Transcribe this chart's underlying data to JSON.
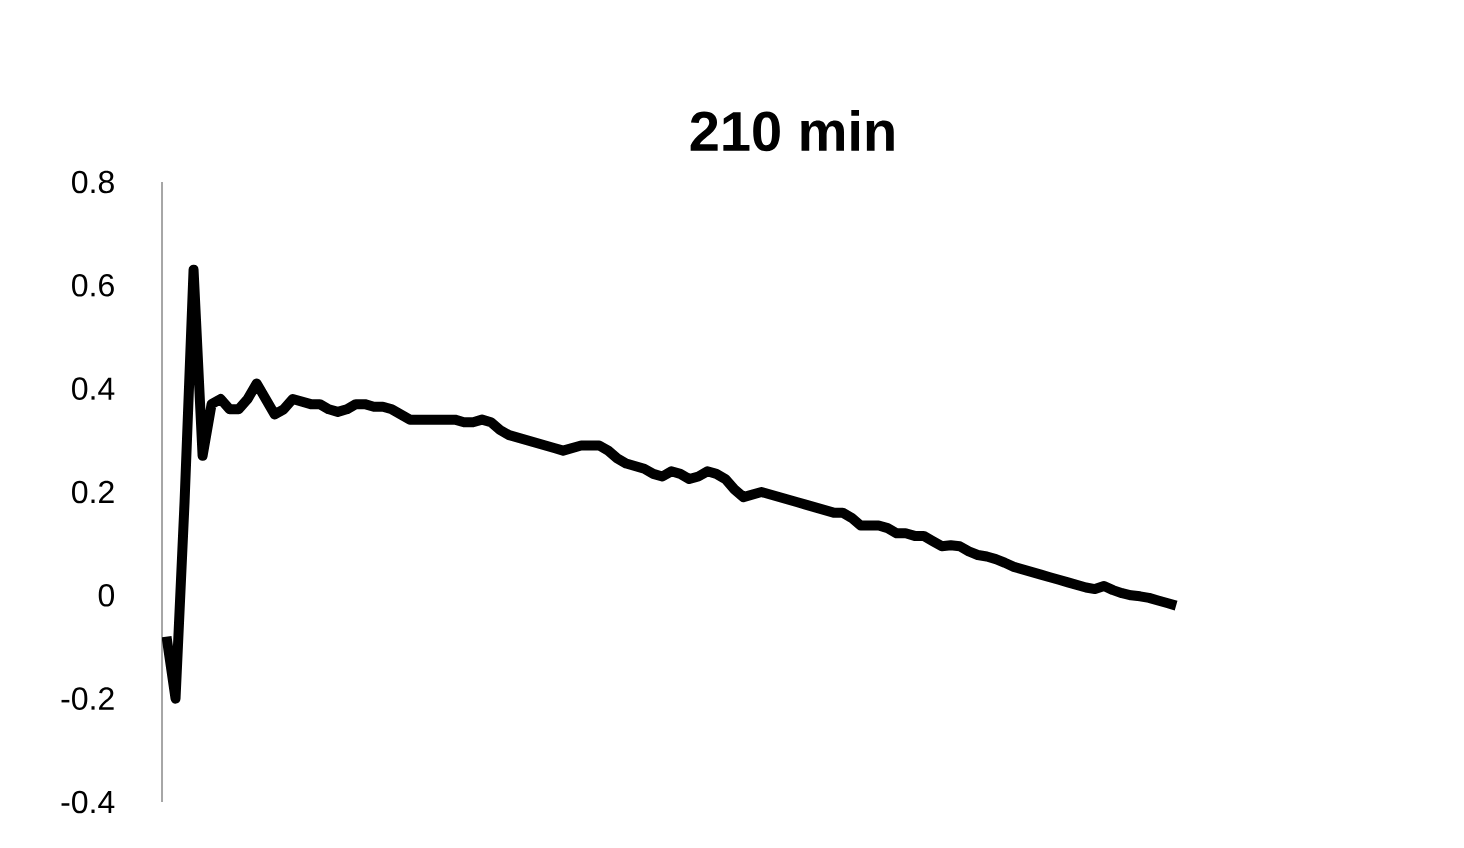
{
  "chart_data": {
    "type": "line",
    "title": "**210 min**",
    "categories": [
      null,
      null,
      null,
      null,
      null,
      null,
      null,
      null,
      null,
      null,
      null,
      null,
      null,
      null,
      null,
      null,
      null,
      null,
      null,
      null,
      null,
      null,
      null,
      null,
      null,
      null,
      null,
      null,
      null,
      null,
      null,
      null,
      null,
      null,
      null,
      null,
      null,
      null,
      null,
      null,
      null,
      null,
      null,
      null,
      null,
      null,
      null,
      null,
      null,
      null,
      null,
      null,
      null,
      null,
      null,
      null,
      null,
      null,
      null,
      null,
      null,
      null,
      null,
      null,
      null,
      null,
      null,
      null,
      null,
      null,
      null,
      null,
      null,
      null,
      null,
      null,
      null,
      null,
      null,
      null,
      null,
      null,
      null,
      null,
      null,
      null,
      null,
      null,
      null,
      null,
      null,
      null,
      null,
      null,
      null,
      null,
      null,
      null,
      null,
      null,
      null,
      null,
      null,
      null,
      null,
      null,
      null,
      null,
      null,
      null,
      null,
      null,
      null,
      null,
      null,
      null,
      null,
      null,
      null,
      null,
      null,
      null,
      null,
      null,
      null,
      null,
      null,
      null,
      null,
      null,
      null,
      null,
      null,
      null,
      null,
      null,
      null,
      null,
      null,
      null
    ],
    "values": [
      -0.08,
      -0.2,
      0.18,
      0.63,
      0.27,
      0.37,
      0.38,
      0.36,
      0.36,
      0.38,
      0.41,
      0.38,
      0.35,
      0.36,
      0.38,
      0.375,
      0.37,
      0.37,
      0.36,
      0.355,
      0.36,
      0.37,
      0.37,
      0.365,
      0.365,
      0.36,
      0.35,
      0.34,
      0.34,
      0.34,
      0.34,
      0.34,
      0.34,
      0.335,
      0.335,
      0.34,
      0.335,
      0.32,
      0.31,
      0.305,
      0.3,
      0.295,
      0.29,
      0.285,
      0.28,
      0.285,
      0.29,
      0.29,
      0.29,
      0.28,
      0.265,
      0.255,
      0.25,
      0.245,
      0.235,
      0.23,
      0.24,
      0.235,
      0.225,
      0.23,
      0.24,
      0.235,
      0.225,
      0.205,
      0.19,
      0.195,
      0.2,
      0.195,
      0.19,
      0.185,
      0.18,
      0.175,
      0.17,
      0.165,
      0.16,
      0.16,
      0.15,
      0.135,
      0.135,
      0.135,
      0.13,
      0.12,
      0.12,
      0.115,
      0.115,
      0.105,
      0.095,
      0.097,
      0.095,
      0.085,
      0.078,
      0.075,
      0.07,
      0.063,
      0.055,
      0.05,
      0.045,
      0.04,
      0.035,
      0.03,
      0.025,
      0.02,
      0.015,
      0.012,
      0.018,
      0.01,
      0.004,
      0.0,
      -0.002,
      -0.005,
      -0.01,
      -0.015,
      -0.02,
      null,
      null,
      null,
      null,
      null,
      null,
      null,
      null,
      null,
      null,
      null,
      null,
      null,
      null,
      null,
      null,
      null,
      null,
      null,
      null,
      null,
      null,
      null,
      null,
      null,
      null,
      null
    ],
    "color": "#000000",
    "ylim": [
      -0.4,
      0.8
    ],
    "yticks": [
      -0.4,
      -0.2,
      0,
      0.2,
      0.4,
      0.6,
      0.8
    ],
    "tick_labels": "y",
    "line_style": "solid"
  }
}
